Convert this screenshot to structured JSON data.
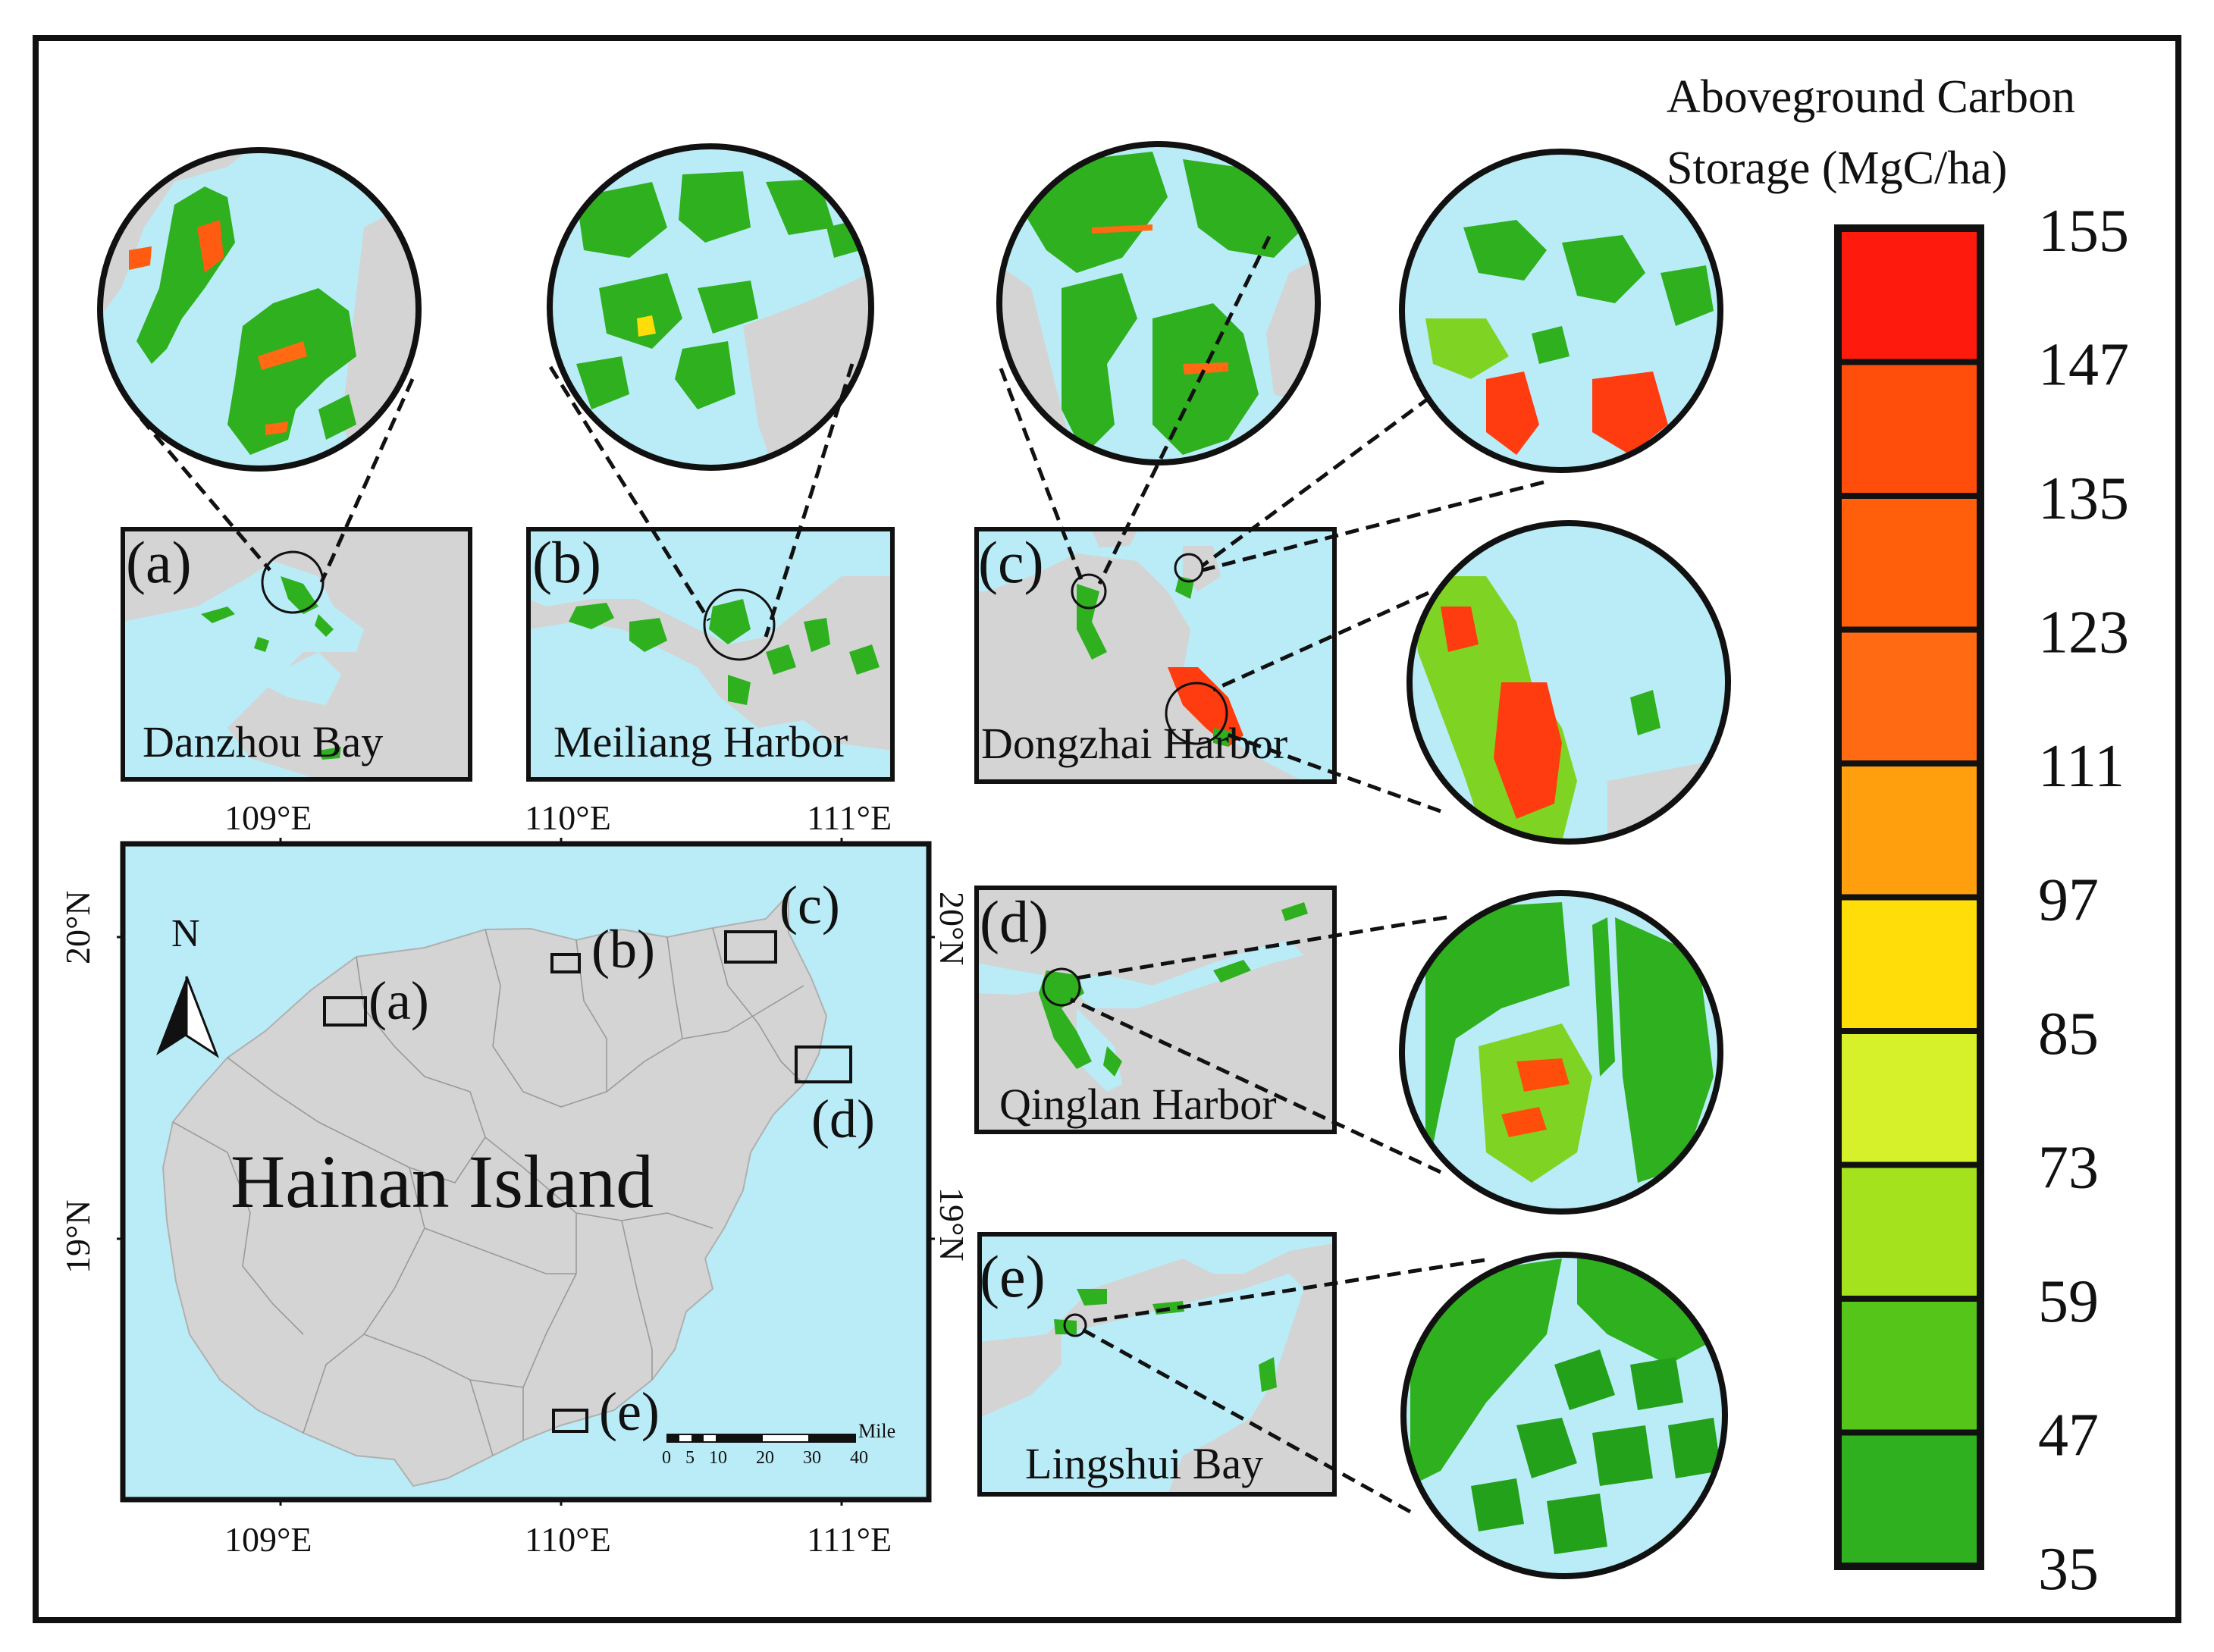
{
  "legend": {
    "title_line1": "Aboveground Carbon",
    "title_line2": "Storage (MgC/ha)",
    "bin_colors": [
      "#ff1a0e",
      "#ff4e0c",
      "#ff5e0a",
      "#ff6a12",
      "#ff9f0e",
      "#ffdd08",
      "#d6f02a",
      "#a3e21c",
      "#56c51a",
      "#2fb01f"
    ],
    "ticks": [
      "155",
      "147",
      "135",
      "123",
      "111",
      "97",
      "85",
      "73",
      "59",
      "47",
      "35"
    ]
  },
  "main_map": {
    "island_name": "Hainan Island",
    "top_lon_ticks": [
      "109°E",
      "110°E",
      "111°E"
    ],
    "bottom_lon_ticks": [
      "109°E",
      "110°E",
      "111°E"
    ],
    "left_lat_ticks": [
      "20°N",
      "19°N"
    ],
    "right_lat_ticks": [
      "20°N",
      "19°N"
    ],
    "north_label": "N",
    "site_labels": [
      "(a)",
      "(b)",
      "(c)",
      "(d)",
      "(e)"
    ],
    "scalebar": {
      "ticks": [
        "0",
        "5",
        "10",
        "20",
        "30",
        "40"
      ],
      "unit": "Mile"
    }
  },
  "insets": [
    {
      "label": "(a)",
      "name": "Danzhou Bay"
    },
    {
      "label": "(b)",
      "name": "Meiliang Harbor"
    },
    {
      "label": "(c)",
      "name": "Dongzhai Harbor"
    },
    {
      "label": "(d)",
      "name": "Qinglan Harbor"
    },
    {
      "label": "(e)",
      "name": "Lingshui Bay"
    }
  ],
  "colors": {
    "sea": "#b9ecf7",
    "land": "#d4d4d4",
    "mangrove_low": "#2fb01f",
    "mangrove_high": "#ff3b10",
    "frame": "#111111"
  }
}
